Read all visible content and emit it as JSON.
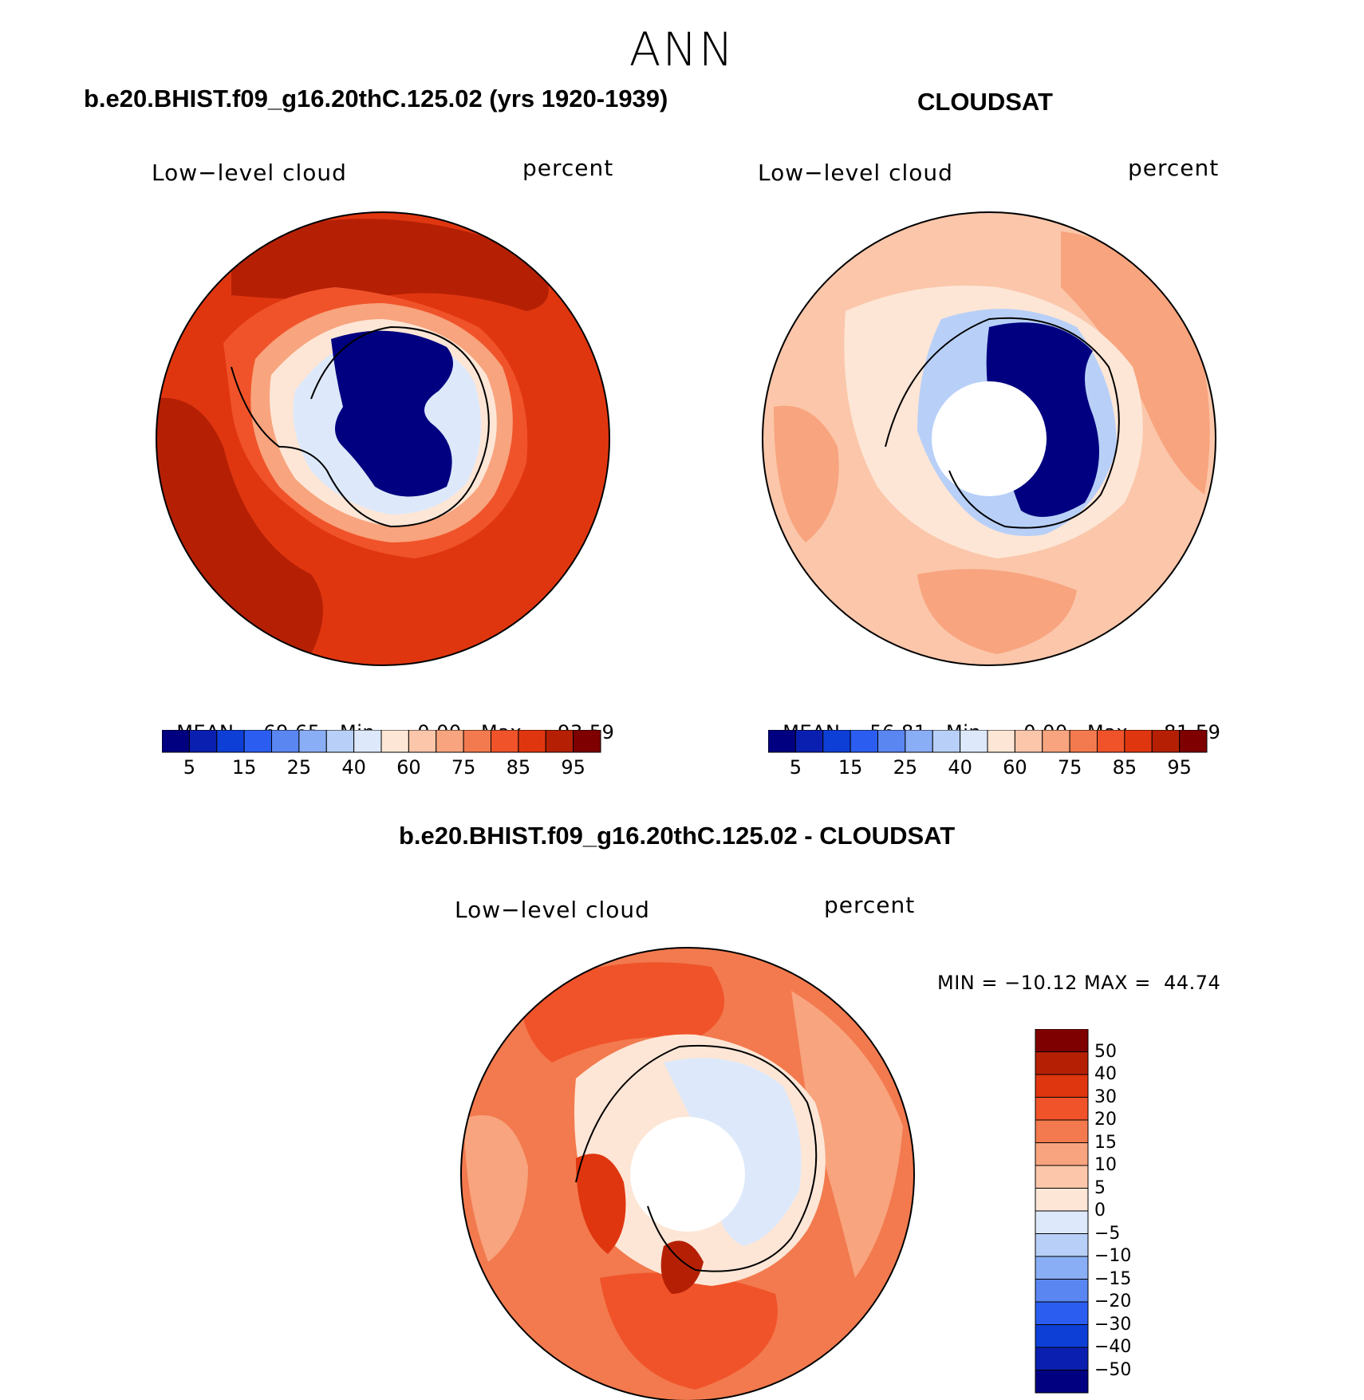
{
  "page": {
    "title": "ANN"
  },
  "panels": [
    {
      "id": "model",
      "case_title": "b.e20.BHIST.f09_g16.20thC.125.02 (yrs 1920-1939)",
      "variable_label": "Low−level cloud",
      "units_label": "percent",
      "stats": {
        "mean_label": "MEAN=",
        "mean": "69.65",
        "min_label": "Min=",
        "min": "0.00",
        "max_label": "Max=",
        "max": "93.59"
      },
      "colorbar_ticks": [
        "5",
        "15",
        "25",
        "40",
        "60",
        "75",
        "85",
        "95"
      ]
    },
    {
      "id": "obs",
      "case_title": "CLOUDSAT",
      "variable_label": "Low−level cloud",
      "units_label": "percent",
      "stats": {
        "mean_label": "MEAN=",
        "mean": "56.81",
        "min_label": "Min=",
        "min": "0.00",
        "max_label": "Max=",
        "max": "81.59"
      },
      "colorbar_ticks": [
        "5",
        "15",
        "25",
        "40",
        "60",
        "75",
        "85",
        "95"
      ]
    }
  ],
  "difference": {
    "case_title": "b.e20.BHIST.f09_g16.20thC.125.02 - CLOUDSAT",
    "variable_label": "Low−level cloud",
    "units_label": "percent",
    "minmax": "MIN = −10.12 MAX =  44.74",
    "colorbar_ticks": [
      "50",
      "40",
      "30",
      "20",
      "15",
      "10",
      "5",
      "0",
      "−5",
      "−10",
      "−15",
      "−20",
      "−30",
      "−40",
      "−50"
    ]
  },
  "colors": {
    "abs_palette": [
      "#000080",
      "#0a1fb0",
      "#0d3fd6",
      "#2b5ef0",
      "#5a86f2",
      "#8aaef5",
      "#b8d0f8",
      "#dde9fb",
      "#fde6d6",
      "#fbc6aa",
      "#f8a47e",
      "#f27a4e",
      "#f0532a",
      "#e0360f",
      "#b52005",
      "#7e0000"
    ],
    "diff_palette": [
      "#000080",
      "#0a1fb0",
      "#0d3fd6",
      "#2b5ef0",
      "#5a86f2",
      "#8aaef5",
      "#b8d0f8",
      "#dde9fb",
      "#fde6d6",
      "#fbc6aa",
      "#f8a47e",
      "#f27a4e",
      "#f0532a",
      "#e0360f",
      "#b52005",
      "#7e0000"
    ]
  }
}
